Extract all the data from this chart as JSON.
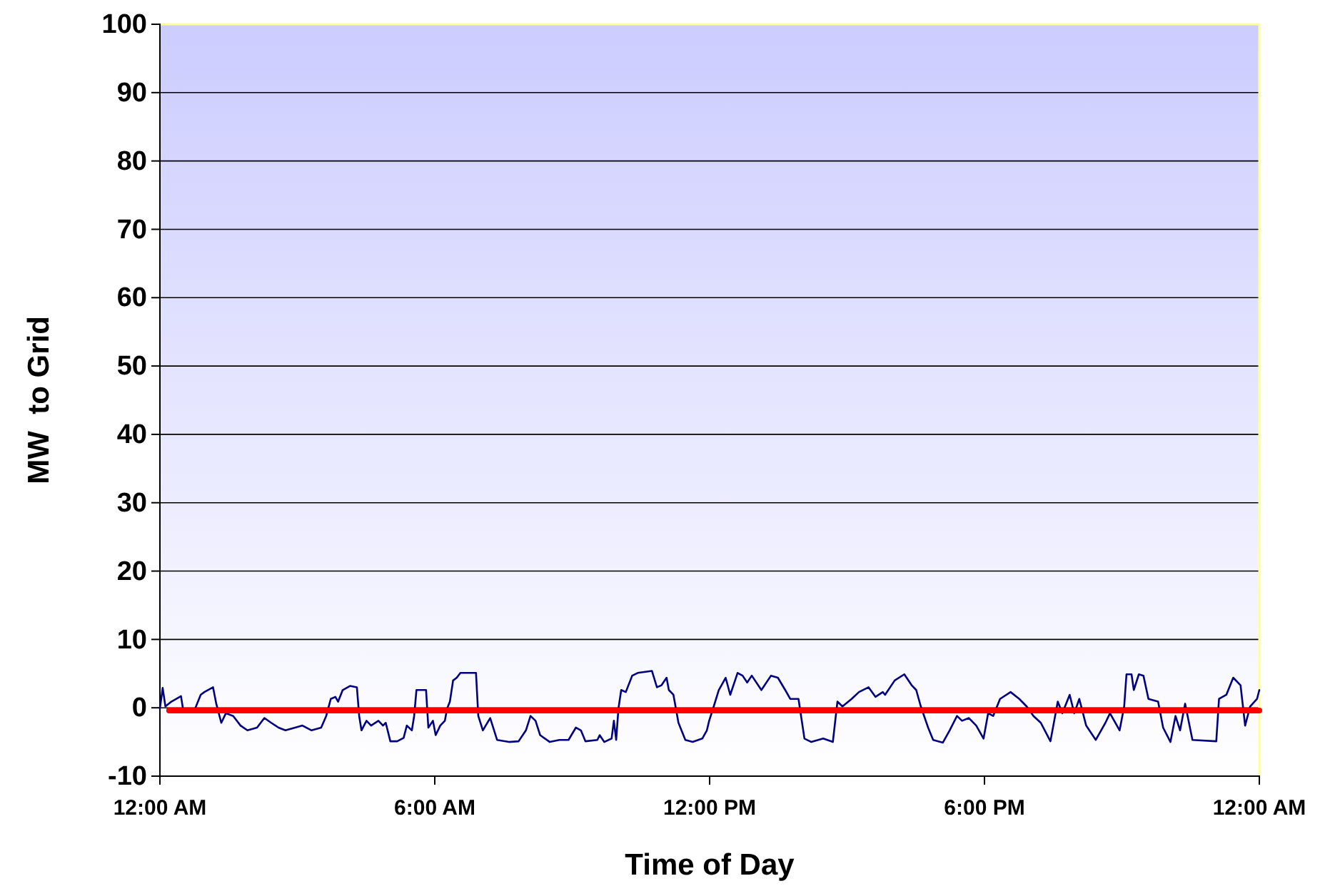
{
  "chart_data": {
    "type": "line",
    "xlabel": "Time of Day",
    "ylabel": "MW  to Grid",
    "xlim": [
      0,
      24
    ],
    "xticks": [
      {
        "value": 0,
        "label": "12:00 AM"
      },
      {
        "value": 6,
        "label": "6:00 AM"
      },
      {
        "value": 12,
        "label": "12:00 PM"
      },
      {
        "value": 18,
        "label": "6:00 PM"
      },
      {
        "value": 24,
        "label": "12:00 AM"
      }
    ],
    "ylim": [
      -10,
      100
    ],
    "yticks": [
      -10,
      0,
      10,
      20,
      30,
      40,
      50,
      60,
      70,
      80,
      90,
      100
    ],
    "grid": "y",
    "marker": "none",
    "line_style": "solid",
    "series": [
      {
        "color": "#000080",
        "x": [
          0,
          0.06,
          0.12,
          0.25,
          0.46,
          0.51,
          0.77,
          0.89,
          0.97,
          1.16,
          1.23,
          1.34,
          1.44,
          1.6,
          1.76,
          1.91,
          2.12,
          2.28,
          2.43,
          2.59,
          2.74,
          2.95,
          3.11,
          3.31,
          3.52,
          3.63,
          3.73,
          3.83,
          3.89,
          3.99,
          4.15,
          4.3,
          4.35,
          4.4,
          4.51,
          4.61,
          4.77,
          4.87,
          4.93,
          5.03,
          5.18,
          5.32,
          5.39,
          5.5,
          5.55,
          5.6,
          5.81,
          5.86,
          5.96,
          6.02,
          6.12,
          6.22,
          6.27,
          6.33,
          6.4,
          6.48,
          6.56,
          6.9,
          6.95,
          7.05,
          7.21,
          7.36,
          7.62,
          7.83,
          7.99,
          8.09,
          8.2,
          8.3,
          8.51,
          8.72,
          8.92,
          9.08,
          9.19,
          9.29,
          9.55,
          9.6,
          9.7,
          9.86,
          9.91,
          9.96,
          10.01,
          10.07,
          10.17,
          10.31,
          10.43,
          10.74,
          10.85,
          10.95,
          11.06,
          11.11,
          11.21,
          11.32,
          11.47,
          11.63,
          11.84,
          11.94,
          11.99,
          12.09,
          12.2,
          12.35,
          12.45,
          12.61,
          12.72,
          12.82,
          12.92,
          13.13,
          13.34,
          13.49,
          13.65,
          13.76,
          13.94,
          14.07,
          14.22,
          14.48,
          14.69,
          14.79,
          14.9,
          15.1,
          15.26,
          15.47,
          15.62,
          15.78,
          15.83,
          16.04,
          16.25,
          16.41,
          16.51,
          16.61,
          16.77,
          16.88,
          17.09,
          17.24,
          17.4,
          17.51,
          17.66,
          17.82,
          17.98,
          18.08,
          18.19,
          18.34,
          18.57,
          18.76,
          18.92,
          19.07,
          19.23,
          19.44,
          19.6,
          19.7,
          19.86,
          19.96,
          20.07,
          20.22,
          20.43,
          20.64,
          20.74,
          20.95,
          21.05,
          21.1,
          21.21,
          21.26,
          21.37,
          21.47,
          21.58,
          21.79,
          21.9,
          22.06,
          22.17,
          22.27,
          22.38,
          22.54,
          23.06,
          23.12,
          23.28,
          23.43,
          23.59,
          23.69,
          23.8,
          23.95,
          24
        ],
        "values": [
          -0.1,
          2.9,
          0.2,
          0.9,
          1.7,
          -0.4,
          -0.1,
          1.9,
          2.3,
          3.0,
          0.6,
          -2.2,
          -0.8,
          -1.2,
          -2.6,
          -3.3,
          -2.9,
          -1.5,
          -2.2,
          -2.9,
          -3.3,
          -2.9,
          -2.6,
          -3.3,
          -2.9,
          -1.2,
          1.3,
          1.6,
          0.9,
          2.6,
          3.2,
          3.0,
          -1.2,
          -3.3,
          -1.9,
          -2.6,
          -1.9,
          -2.6,
          -2.2,
          -4.9,
          -4.9,
          -4.4,
          -2.6,
          -3.3,
          -1.2,
          2.6,
          2.6,
          -2.9,
          -1.9,
          -4.0,
          -2.6,
          -1.9,
          -0.1,
          0.9,
          4.0,
          4.4,
          5.1,
          5.1,
          -1.2,
          -3.3,
          -1.5,
          -4.7,
          -5.0,
          -4.9,
          -3.3,
          -1.2,
          -1.9,
          -4.0,
          -5.0,
          -4.7,
          -4.7,
          -2.9,
          -3.3,
          -4.9,
          -4.7,
          -4.0,
          -5.0,
          -4.5,
          -1.9,
          -4.7,
          -0.1,
          2.6,
          2.3,
          4.7,
          5.1,
          5.4,
          3.0,
          3.3,
          4.4,
          2.6,
          1.9,
          -2.2,
          -4.7,
          -5.0,
          -4.5,
          -3.3,
          -1.9,
          0.2,
          2.6,
          4.4,
          1.9,
          5.1,
          4.7,
          3.7,
          4.7,
          2.6,
          4.7,
          4.4,
          2.6,
          1.3,
          1.3,
          -4.5,
          -5.0,
          -4.5,
          -5.0,
          0.9,
          0.2,
          1.3,
          2.3,
          3.0,
          1.6,
          2.3,
          1.9,
          4.0,
          4.9,
          3.3,
          2.6,
          0.2,
          -2.9,
          -4.7,
          -5.1,
          -3.3,
          -1.2,
          -1.9,
          -1.5,
          -2.6,
          -4.5,
          -0.8,
          -1.2,
          1.3,
          2.3,
          1.3,
          0.2,
          -1.2,
          -2.2,
          -4.9,
          0.9,
          -0.8,
          1.9,
          -0.8,
          1.3,
          -2.6,
          -4.7,
          -2.2,
          -0.8,
          -3.3,
          0.2,
          4.9,
          4.9,
          2.6,
          4.9,
          4.7,
          1.3,
          0.9,
          -2.9,
          -5.0,
          -1.2,
          -3.3,
          0.6,
          -4.7,
          -4.9,
          1.3,
          1.9,
          4.4,
          3.3,
          -2.6,
          0.2,
          1.3,
          2.6
        ]
      },
      {
        "color": "#ff0000",
        "x": [
          0.2,
          24
        ],
        "values": [
          -0.4,
          -0.4
        ]
      }
    ]
  }
}
